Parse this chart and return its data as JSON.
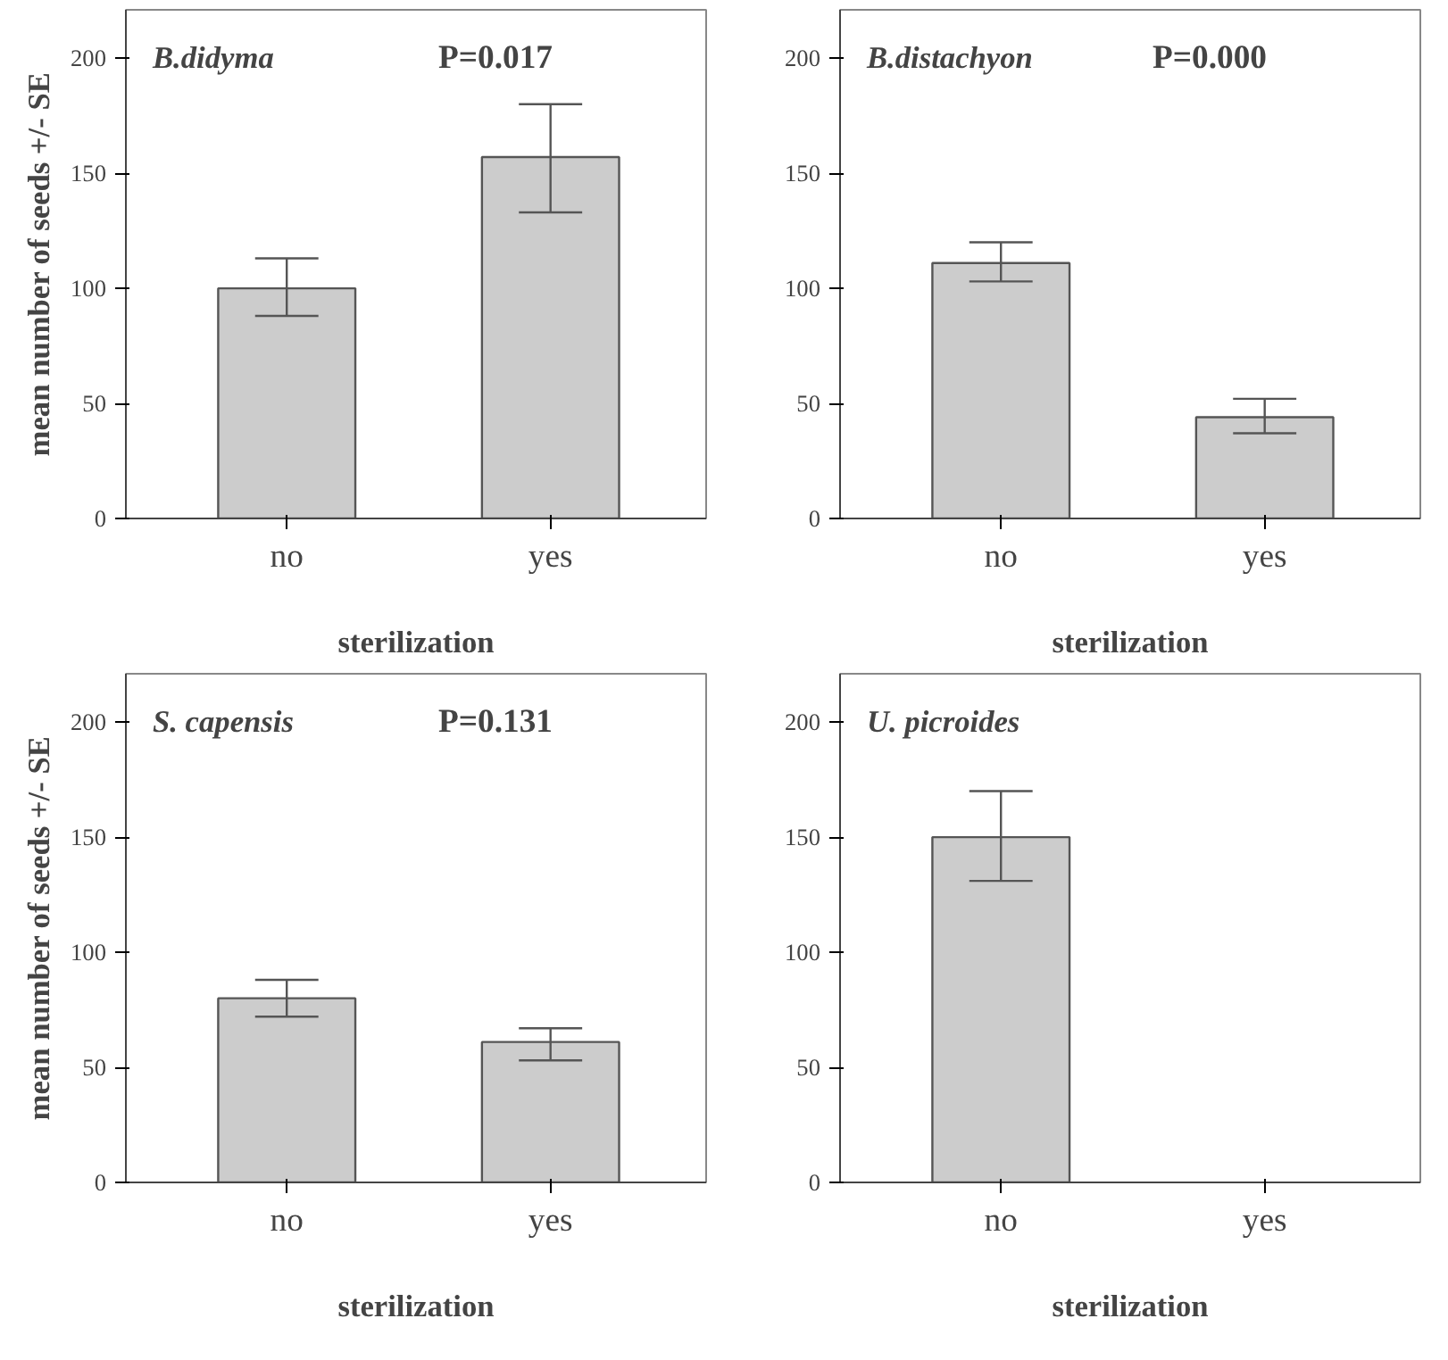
{
  "chart_data": [
    {
      "type": "bar",
      "title": "B.didyma",
      "categories": [
        "no",
        "yes"
      ],
      "values": [
        100,
        157
      ],
      "errors": [
        [
          88,
          113
        ],
        [
          133,
          180
        ]
      ],
      "color": "#cccccc",
      "xlabel": "sterilization",
      "ylabel": "mean number of seeds +/- SE",
      "ylim": [
        0,
        221
      ],
      "yticks": [
        0,
        50,
        100,
        150,
        200
      ],
      "grid": false,
      "annotations": [
        "P=0.017"
      ]
    },
    {
      "type": "bar",
      "title": "B.distachyon",
      "categories": [
        "no",
        "yes"
      ],
      "values": [
        111,
        44
      ],
      "errors": [
        [
          103,
          120
        ],
        [
          37,
          52
        ]
      ],
      "color": "#cccccc",
      "xlabel": "sterilization",
      "ylim": [
        0,
        221
      ],
      "yticks": [
        0,
        50,
        100,
        150,
        200
      ],
      "grid": false,
      "annotations": [
        "P=0.000"
      ]
    },
    {
      "type": "bar",
      "title": "S. capensis",
      "categories": [
        "no",
        "yes"
      ],
      "values": [
        80,
        61
      ],
      "errors": [
        [
          72,
          88
        ],
        [
          53,
          67
        ]
      ],
      "color": "#cccccc",
      "xlabel": "sterilization",
      "ylabel": "mean number of seeds +/- SE",
      "ylim": [
        0,
        221
      ],
      "yticks": [
        0,
        50,
        100,
        150,
        200
      ],
      "grid": false,
      "annotations": [
        "P=0.131"
      ]
    },
    {
      "type": "bar",
      "title": "U. picroides",
      "categories": [
        "no",
        "yes"
      ],
      "values": [
        150,
        null
      ],
      "errors": [
        [
          131,
          170
        ],
        null
      ],
      "color": "#cccccc",
      "xlabel": "sterilization",
      "ylim": [
        0,
        221
      ],
      "yticks": [
        0,
        50,
        100,
        150,
        200
      ],
      "grid": false
    }
  ]
}
